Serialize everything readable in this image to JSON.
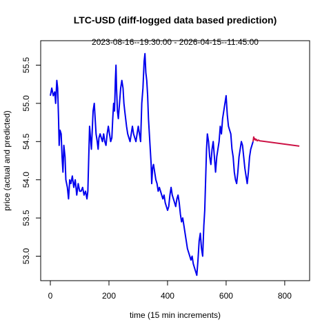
{
  "chart_data": {
    "type": "line",
    "title": "LTC-USD (diff-logged data based prediction)",
    "subtitle": "2023-08-16--19:30:00  -  2026-04-15--11:45:00",
    "xlabel": "time (15 min increments)",
    "ylabel": "price (actual and predicted)",
    "xlim": [
      -33,
      885
    ],
    "ylim": [
      52.68,
      55.82
    ],
    "x_ticks": [
      0,
      200,
      400,
      600,
      800
    ],
    "y_ticks": [
      53.0,
      53.5,
      54.0,
      54.5,
      55.0,
      55.5
    ],
    "grid": false,
    "legend": "none",
    "series": [
      {
        "color": "#0000ee",
        "points": [
          [
            0,
            55.1
          ],
          [
            5,
            55.2
          ],
          [
            10,
            55.1
          ],
          [
            15,
            55.15
          ],
          [
            18,
            55.0
          ],
          [
            22,
            55.3
          ],
          [
            25,
            55.2
          ],
          [
            28,
            54.8
          ],
          [
            30,
            54.45
          ],
          [
            33,
            54.65
          ],
          [
            37,
            54.6
          ],
          [
            40,
            54.3
          ],
          [
            43,
            54.1
          ],
          [
            46,
            54.45
          ],
          [
            50,
            54.3
          ],
          [
            53,
            54.0
          ],
          [
            58,
            53.9
          ],
          [
            62,
            53.75
          ],
          [
            66,
            54.0
          ],
          [
            70,
            53.95
          ],
          [
            75,
            54.05
          ],
          [
            80,
            53.9
          ],
          [
            85,
            54.0
          ],
          [
            90,
            53.8
          ],
          [
            95,
            53.95
          ],
          [
            100,
            53.85
          ],
          [
            105,
            53.85
          ],
          [
            110,
            53.9
          ],
          [
            115,
            53.8
          ],
          [
            120,
            53.85
          ],
          [
            125,
            53.75
          ],
          [
            128,
            53.85
          ],
          [
            131,
            54.3
          ],
          [
            134,
            54.7
          ],
          [
            137,
            54.55
          ],
          [
            140,
            54.4
          ],
          [
            143,
            54.65
          ],
          [
            146,
            54.9
          ],
          [
            150,
            55.0
          ],
          [
            153,
            54.8
          ],
          [
            156,
            54.6
          ],
          [
            160,
            54.5
          ],
          [
            163,
            54.4
          ],
          [
            166,
            54.55
          ],
          [
            170,
            54.6
          ],
          [
            174,
            54.55
          ],
          [
            178,
            54.5
          ],
          [
            182,
            54.6
          ],
          [
            186,
            54.5
          ],
          [
            190,
            54.45
          ],
          [
            194,
            54.6
          ],
          [
            198,
            54.7
          ],
          [
            202,
            54.6
          ],
          [
            206,
            54.5
          ],
          [
            210,
            54.55
          ],
          [
            213,
            54.8
          ],
          [
            216,
            55.0
          ],
          [
            219,
            54.9
          ],
          [
            222,
            55.3
          ],
          [
            224,
            55.5
          ],
          [
            226,
            55.2
          ],
          [
            229,
            54.9
          ],
          [
            232,
            54.8
          ],
          [
            236,
            55.0
          ],
          [
            240,
            55.2
          ],
          [
            244,
            55.3
          ],
          [
            248,
            55.2
          ],
          [
            251,
            55.0
          ],
          [
            254,
            54.9
          ],
          [
            257,
            54.8
          ],
          [
            260,
            54.7
          ],
          [
            264,
            54.6
          ],
          [
            268,
            54.55
          ],
          [
            272,
            54.5
          ],
          [
            276,
            54.6
          ],
          [
            280,
            54.7
          ],
          [
            284,
            54.6
          ],
          [
            288,
            54.55
          ],
          [
            292,
            54.5
          ],
          [
            296,
            54.6
          ],
          [
            300,
            54.7
          ],
          [
            304,
            54.6
          ],
          [
            308,
            54.5
          ],
          [
            312,
            55.0
          ],
          [
            316,
            55.2
          ],
          [
            320,
            55.55
          ],
          [
            323,
            55.65
          ],
          [
            326,
            55.4
          ],
          [
            329,
            55.3
          ],
          [
            332,
            55.1
          ],
          [
            335,
            54.8
          ],
          [
            338,
            54.6
          ],
          [
            341,
            54.4
          ],
          [
            344,
            54.2
          ],
          [
            346,
            53.95
          ],
          [
            349,
            54.15
          ],
          [
            352,
            54.2
          ],
          [
            356,
            54.1
          ],
          [
            360,
            54.0
          ],
          [
            364,
            53.95
          ],
          [
            368,
            53.85
          ],
          [
            372,
            53.9
          ],
          [
            376,
            53.85
          ],
          [
            380,
            53.8
          ],
          [
            384,
            53.75
          ],
          [
            388,
            53.8
          ],
          [
            392,
            53.7
          ],
          [
            396,
            53.65
          ],
          [
            400,
            53.6
          ],
          [
            404,
            53.65
          ],
          [
            408,
            53.8
          ],
          [
            412,
            53.9
          ],
          [
            416,
            53.8
          ],
          [
            420,
            53.75
          ],
          [
            424,
            53.7
          ],
          [
            428,
            53.65
          ],
          [
            432,
            53.75
          ],
          [
            436,
            53.8
          ],
          [
            440,
            53.7
          ],
          [
            444,
            53.55
          ],
          [
            448,
            53.45
          ],
          [
            452,
            53.5
          ],
          [
            456,
            53.4
          ],
          [
            460,
            53.3
          ],
          [
            464,
            53.2
          ],
          [
            468,
            53.1
          ],
          [
            472,
            53.05
          ],
          [
            476,
            53.0
          ],
          [
            480,
            52.95
          ],
          [
            484,
            53.0
          ],
          [
            488,
            52.9
          ],
          [
            492,
            52.85
          ],
          [
            496,
            52.8
          ],
          [
            500,
            52.75
          ],
          [
            504,
            52.95
          ],
          [
            508,
            53.2
          ],
          [
            512,
            53.3
          ],
          [
            516,
            53.1
          ],
          [
            520,
            53.0
          ],
          [
            524,
            53.4
          ],
          [
            527,
            53.6
          ],
          [
            530,
            54.0
          ],
          [
            533,
            54.4
          ],
          [
            536,
            54.6
          ],
          [
            540,
            54.5
          ],
          [
            544,
            54.3
          ],
          [
            548,
            54.2
          ],
          [
            552,
            54.4
          ],
          [
            556,
            54.5
          ],
          [
            560,
            54.3
          ],
          [
            564,
            54.1
          ],
          [
            568,
            54.3
          ],
          [
            572,
            54.4
          ],
          [
            576,
            54.5
          ],
          [
            580,
            54.7
          ],
          [
            584,
            54.6
          ],
          [
            588,
            54.8
          ],
          [
            592,
            54.9
          ],
          [
            596,
            55.0
          ],
          [
            600,
            55.1
          ],
          [
            604,
            54.85
          ],
          [
            608,
            54.7
          ],
          [
            612,
            54.65
          ],
          [
            616,
            54.6
          ],
          [
            620,
            54.4
          ],
          [
            624,
            54.3
          ],
          [
            628,
            54.1
          ],
          [
            632,
            54.0
          ],
          [
            636,
            53.95
          ],
          [
            640,
            54.1
          ],
          [
            644,
            54.3
          ],
          [
            648,
            54.4
          ],
          [
            652,
            54.5
          ],
          [
            656,
            54.45
          ],
          [
            660,
            54.3
          ],
          [
            664,
            54.15
          ],
          [
            668,
            54.05
          ],
          [
            672,
            53.95
          ],
          [
            676,
            54.1
          ],
          [
            680,
            54.3
          ],
          [
            684,
            54.4
          ],
          [
            688,
            54.45
          ],
          [
            692,
            54.5
          ]
        ]
      },
      {
        "color": "#cc1144",
        "points": [
          [
            692,
            54.5
          ],
          [
            694,
            54.56
          ],
          [
            696,
            54.53
          ],
          [
            698,
            54.54
          ],
          [
            700,
            54.52
          ],
          [
            703,
            54.53
          ],
          [
            706,
            54.51
          ],
          [
            710,
            54.52
          ],
          [
            715,
            54.51
          ],
          [
            850,
            54.44
          ]
        ]
      }
    ]
  }
}
